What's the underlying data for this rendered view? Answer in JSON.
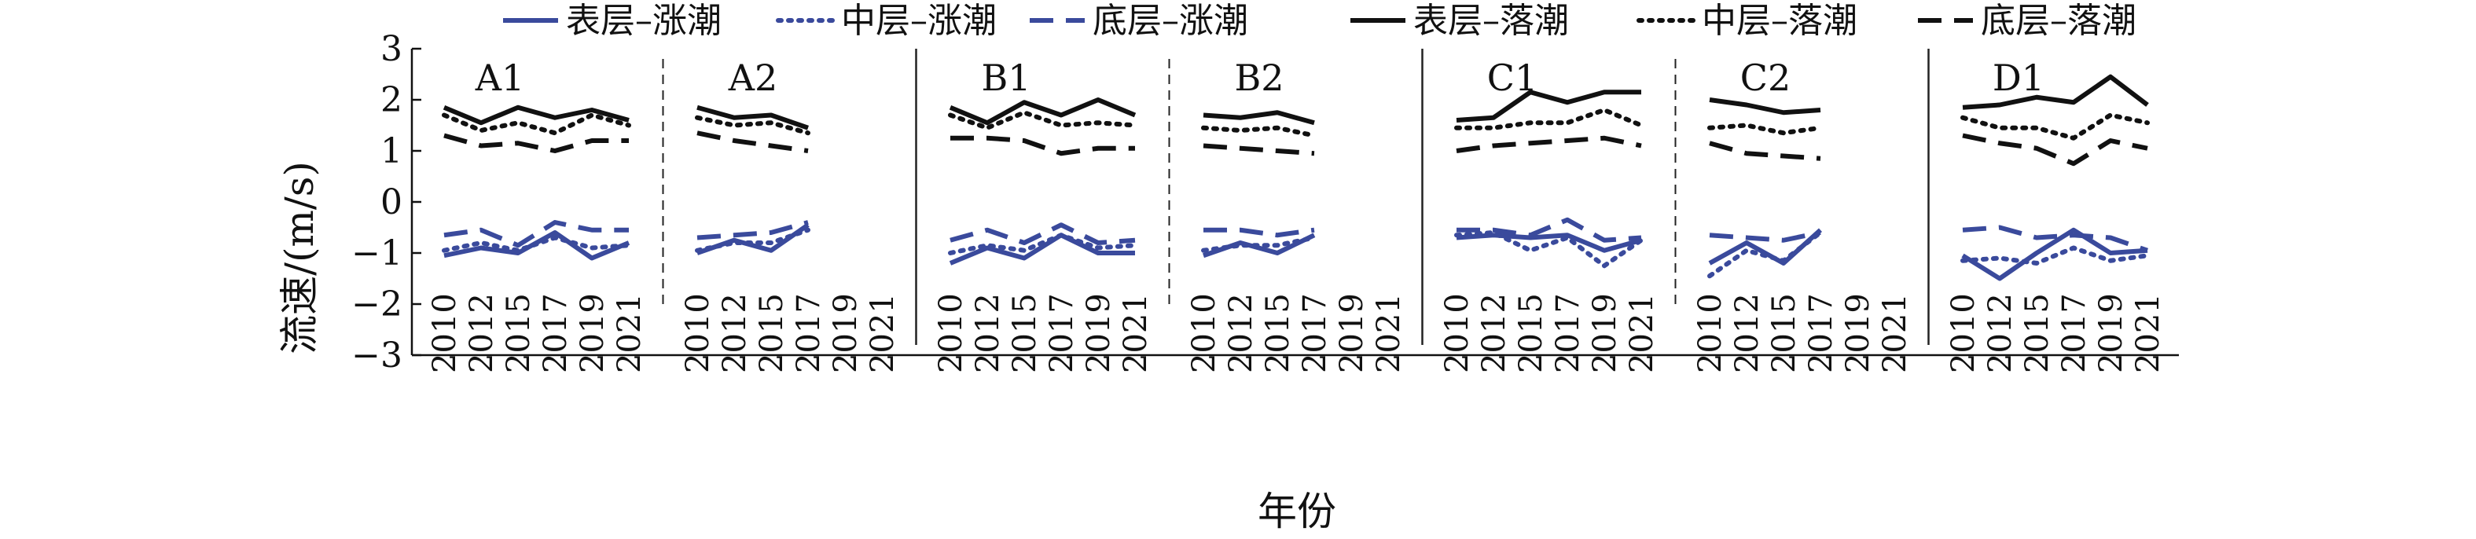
{
  "chart_data": {
    "type": "line",
    "title": "",
    "xlabel": "年份",
    "ylabel": "流速/(m/s)",
    "ylim": [
      -3,
      3
    ],
    "yticks": [
      3,
      2,
      1,
      0,
      -1,
      -2,
      -3
    ],
    "grid": false,
    "legend_position": "top",
    "categories": [
      "2010",
      "2012",
      "2015",
      "2017",
      "2019",
      "2021"
    ],
    "colors": {
      "flood": "#3a4a9c",
      "ebb": "#111111"
    },
    "series_styles": [
      {
        "name": "表层–涨潮",
        "tide": "flood",
        "dash": "solid"
      },
      {
        "name": "中层–涨潮",
        "tide": "flood",
        "dash": "dotted"
      },
      {
        "name": "底层–涨潮",
        "tide": "flood",
        "dash": "dashed"
      },
      {
        "name": "表层–落潮",
        "tide": "ebb",
        "dash": "solid"
      },
      {
        "name": "中层–落潮",
        "tide": "ebb",
        "dash": "dotted"
      },
      {
        "name": "底层–落潮",
        "tide": "ebb",
        "dash": "dashed"
      }
    ],
    "panels": [
      {
        "label": "A1",
        "values": [
          [
            -1.05,
            -0.9,
            -1.0,
            -0.6,
            -1.1,
            -0.8
          ],
          [
            -0.95,
            -0.8,
            -0.95,
            -0.7,
            -0.9,
            -0.85
          ],
          [
            -0.65,
            -0.55,
            -0.85,
            -0.4,
            -0.55,
            -0.55
          ],
          [
            1.85,
            1.55,
            1.85,
            1.65,
            1.8,
            1.6
          ],
          [
            1.7,
            1.4,
            1.55,
            1.35,
            1.7,
            1.5
          ],
          [
            1.3,
            1.1,
            1.15,
            1.0,
            1.2,
            1.2
          ]
        ]
      },
      {
        "label": "A2",
        "values": [
          [
            -1.0,
            -0.75,
            -0.95,
            -0.45,
            null,
            null
          ],
          [
            -0.95,
            -0.8,
            -0.8,
            -0.55,
            null,
            null
          ],
          [
            -0.7,
            -0.65,
            -0.6,
            -0.4,
            null,
            null
          ],
          [
            1.85,
            1.65,
            1.7,
            1.45,
            null,
            null
          ],
          [
            1.65,
            1.5,
            1.55,
            1.35,
            null,
            null
          ],
          [
            1.35,
            1.2,
            1.1,
            1.0,
            null,
            null
          ]
        ]
      },
      {
        "label": "B1",
        "values": [
          [
            -1.2,
            -0.9,
            -1.1,
            -0.65,
            -1.0,
            -1.0
          ],
          [
            -1.0,
            -0.85,
            -0.95,
            -0.65,
            -0.9,
            -0.85
          ],
          [
            -0.75,
            -0.55,
            -0.8,
            -0.45,
            -0.8,
            -0.75
          ],
          [
            1.85,
            1.55,
            1.95,
            1.7,
            2.0,
            1.7
          ],
          [
            1.7,
            1.45,
            1.75,
            1.5,
            1.55,
            1.5
          ],
          [
            1.25,
            1.25,
            1.2,
            0.95,
            1.05,
            1.05
          ]
        ]
      },
      {
        "label": "B2",
        "values": [
          [
            -1.05,
            -0.8,
            -1.0,
            -0.65,
            null,
            null
          ],
          [
            -0.95,
            -0.85,
            -0.85,
            -0.7,
            null,
            null
          ],
          [
            -0.55,
            -0.55,
            -0.65,
            -0.55,
            null,
            null
          ],
          [
            1.7,
            1.65,
            1.75,
            1.55,
            null,
            null
          ],
          [
            1.45,
            1.4,
            1.45,
            1.3,
            null,
            null
          ],
          [
            1.1,
            1.05,
            1.0,
            0.95,
            null,
            null
          ]
        ]
      },
      {
        "label": "C1",
        "values": [
          [
            -0.7,
            -0.65,
            -0.7,
            -0.65,
            -0.95,
            -0.75
          ],
          [
            -0.65,
            -0.6,
            -0.95,
            -0.7,
            -1.25,
            -0.75
          ],
          [
            -0.55,
            -0.55,
            -0.65,
            -0.35,
            -0.75,
            -0.7
          ],
          [
            1.6,
            1.65,
            2.15,
            1.95,
            2.15,
            2.15
          ],
          [
            1.45,
            1.45,
            1.55,
            1.55,
            1.8,
            1.5
          ],
          [
            1.0,
            1.1,
            1.15,
            1.2,
            1.25,
            1.1
          ]
        ]
      },
      {
        "label": "C2",
        "values": [
          [
            -1.2,
            -0.8,
            -1.2,
            -0.55,
            null,
            null
          ],
          [
            -1.45,
            -0.95,
            -1.15,
            -0.6,
            null,
            null
          ],
          [
            -0.65,
            -0.7,
            -0.75,
            -0.6,
            null,
            null
          ],
          [
            2.0,
            1.9,
            1.75,
            1.8,
            null,
            null
          ],
          [
            1.45,
            1.5,
            1.35,
            1.45,
            null,
            null
          ],
          [
            1.15,
            0.95,
            0.9,
            0.85,
            null,
            null
          ]
        ]
      },
      {
        "label": "D1",
        "values": [
          [
            -1.05,
            -1.5,
            -1.0,
            -0.55,
            -1.0,
            -0.95
          ],
          [
            -1.15,
            -1.1,
            -1.2,
            -0.9,
            -1.15,
            -1.05
          ],
          [
            -0.55,
            -0.5,
            -0.7,
            -0.65,
            -0.7,
            -0.95
          ],
          [
            1.85,
            1.9,
            2.05,
            1.95,
            2.45,
            1.9
          ],
          [
            1.65,
            1.45,
            1.45,
            1.25,
            1.7,
            1.55
          ],
          [
            1.3,
            1.15,
            1.05,
            0.75,
            1.2,
            1.05
          ]
        ]
      }
    ]
  }
}
